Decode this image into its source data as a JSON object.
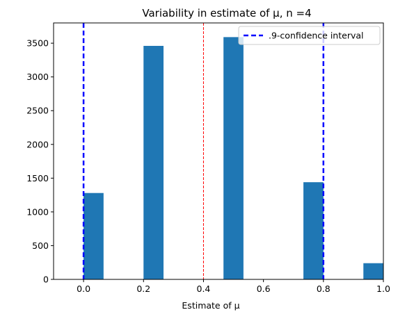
{
  "chart_data": {
    "type": "bar",
    "title": "Variability in estimate of μ, n =4",
    "xlabel": "Estimate of μ",
    "ylabel": "",
    "xlim": [
      -0.1,
      1.0
    ],
    "ylim": [
      0,
      3800
    ],
    "xticks": [
      "0.0",
      "0.2",
      "0.4",
      "0.6",
      "0.8",
      "1.0"
    ],
    "yticks": [
      "0",
      "500",
      "1000",
      "1500",
      "2000",
      "2500",
      "3000",
      "3500"
    ],
    "bins": [
      {
        "x0": 0.0,
        "x1": 0.0667,
        "value": 1280
      },
      {
        "x0": 0.2,
        "x1": 0.2667,
        "value": 3460
      },
      {
        "x0": 0.4667,
        "x1": 0.5333,
        "value": 3590
      },
      {
        "x0": 0.7333,
        "x1": 0.8,
        "value": 1440
      },
      {
        "x0": 0.9333,
        "x1": 1.0,
        "value": 240
      }
    ],
    "bar_color": "#1f77b4",
    "confidence_interval": {
      "lower": 0.0,
      "upper": 0.8,
      "color": "#0000ff",
      "label": ".9-confidence interval"
    },
    "mean_line": {
      "x": 0.4,
      "color": "#ff0000"
    },
    "legend_position": "top-right",
    "grid": false
  }
}
